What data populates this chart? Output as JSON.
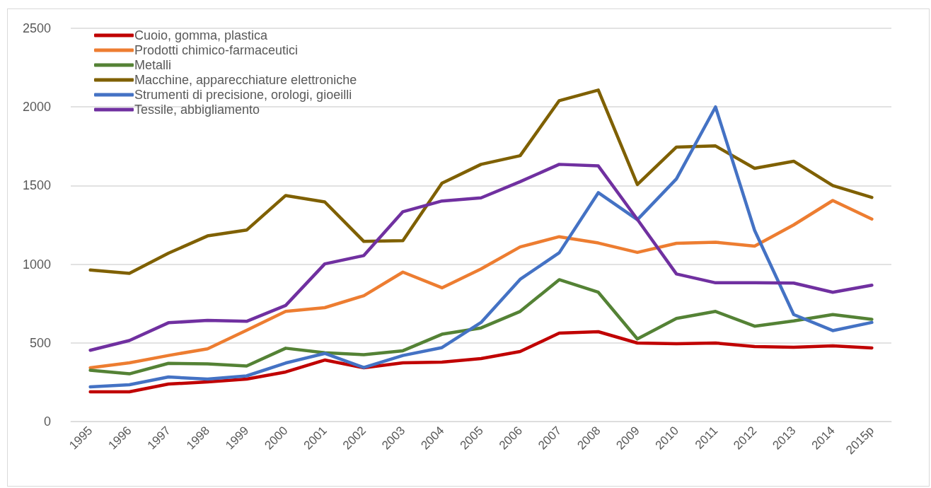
{
  "chart_data": {
    "type": "line",
    "categories": [
      "1995",
      "1996",
      "1997",
      "1998",
      "1999",
      "2000",
      "2001",
      "2002",
      "2003",
      "2004",
      "2005",
      "2006",
      "2007",
      "2008",
      "2009",
      "2010",
      "2011",
      "2012",
      "2013",
      "2014",
      "2015p"
    ],
    "series": [
      {
        "name": "Cuoio, gomma, plastica",
        "color": "#c00000",
        "values": [
          189,
          189,
          238,
          252,
          270,
          315,
          391,
          342,
          373,
          378,
          400,
          445,
          562,
          571,
          499,
          495,
          499,
          477,
          472,
          481,
          468
        ]
      },
      {
        "name": "Prodotti chimico-farmaceutici",
        "color": "#ed7d31",
        "values": [
          342,
          373,
          420,
          462,
          580,
          700,
          724,
          800,
          950,
          850,
          970,
          1110,
          1175,
          1135,
          1075,
          1133,
          1140,
          1115,
          1250,
          1405,
          1287
        ]
      },
      {
        "name": "Metalli",
        "color": "#548235",
        "values": [
          326,
          303,
          370,
          366,
          353,
          466,
          437,
          425,
          450,
          555,
          595,
          700,
          902,
          822,
          525,
          655,
          700,
          606,
          640,
          680,
          650
        ]
      },
      {
        "name": "Macchine, apparecchiature elettroniche",
        "color": "#7f6000",
        "values": [
          963,
          942,
          1070,
          1180,
          1217,
          1437,
          1396,
          1145,
          1150,
          1515,
          1635,
          1690,
          2040,
          2107,
          1507,
          1745,
          1752,
          1610,
          1655,
          1500,
          1425
        ]
      },
      {
        "name": "Strumenti di precisione, orologi, gioeilli",
        "color": "#4472c4",
        "values": [
          220,
          234,
          283,
          270,
          290,
          372,
          433,
          343,
          420,
          470,
          630,
          904,
          1073,
          1455,
          1283,
          1543,
          2000,
          1215,
          680,
          578,
          630
        ]
      },
      {
        "name": "Tessile, abbigliamento",
        "color": "#7030a0",
        "values": [
          453,
          515,
          628,
          643,
          637,
          738,
          1002,
          1055,
          1334,
          1402,
          1422,
          1525,
          1635,
          1625,
          1285,
          938,
          882,
          882,
          880,
          822,
          867
        ]
      }
    ],
    "ylim": [
      0,
      2500
    ],
    "yticks": [
      0,
      500,
      1000,
      1500,
      2000,
      2500
    ],
    "grid": "y",
    "legend": "top left",
    "marker": "none",
    "line_style": "solid"
  }
}
